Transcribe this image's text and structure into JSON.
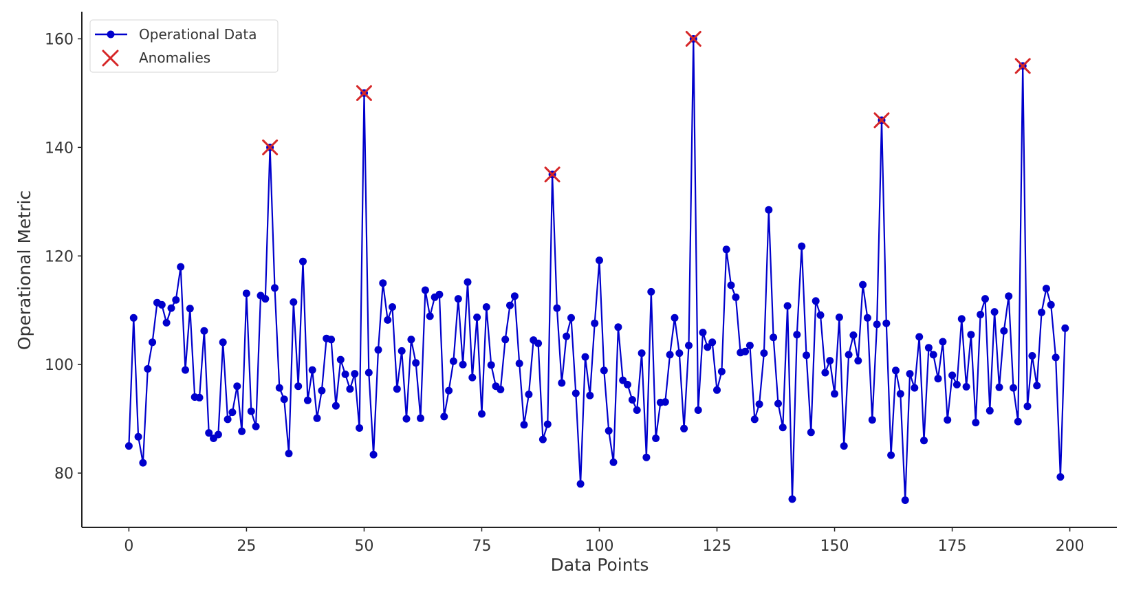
{
  "chart_data": {
    "type": "line",
    "title": "",
    "xlabel": "Data Points",
    "ylabel": "Operational Metric",
    "xlim": [
      -10,
      210
    ],
    "ylim": [
      70,
      165
    ],
    "x_ticks": [
      0,
      25,
      50,
      75,
      100,
      125,
      150,
      175,
      200
    ],
    "y_ticks": [
      80,
      100,
      120,
      140,
      160
    ],
    "grid": false,
    "legend_position": "top-left",
    "series": [
      {
        "name": "Operational Data",
        "color": "#0000cc",
        "marker": "circle",
        "x": [
          0,
          1,
          2,
          3,
          4,
          5,
          6,
          7,
          8,
          9,
          10,
          11,
          12,
          13,
          14,
          15,
          16,
          17,
          18,
          19,
          20,
          21,
          22,
          23,
          24,
          25,
          26,
          27,
          28,
          29,
          30,
          31,
          32,
          33,
          34,
          35,
          36,
          37,
          38,
          39,
          40,
          41,
          42,
          43,
          44,
          45,
          46,
          47,
          48,
          49,
          50,
          51,
          52,
          53,
          54,
          55,
          56,
          57,
          58,
          59,
          60,
          61,
          62,
          63,
          64,
          65,
          66,
          67,
          68,
          69,
          70,
          71,
          72,
          73,
          74,
          75,
          76,
          77,
          78,
          79,
          80,
          81,
          82,
          83,
          84,
          85,
          86,
          87,
          88,
          89,
          90,
          91,
          92,
          93,
          94,
          95,
          96,
          97,
          98,
          99,
          100,
          101,
          102,
          103,
          104,
          105,
          106,
          107,
          108,
          109,
          110,
          111,
          112,
          113,
          114,
          115,
          116,
          117,
          118,
          119,
          120,
          121,
          122,
          123,
          124,
          125,
          126,
          127,
          128,
          129,
          130,
          131,
          132,
          133,
          134,
          135,
          136,
          137,
          138,
          139,
          140,
          141,
          142,
          143,
          144,
          145,
          146,
          147,
          148,
          149,
          150,
          151,
          152,
          153,
          154,
          155,
          156,
          157,
          158,
          159,
          160,
          161,
          162,
          163,
          164,
          165,
          166,
          167,
          168,
          169,
          170,
          171,
          172,
          173,
          174,
          175,
          176,
          177,
          178,
          179,
          180,
          181,
          182,
          183,
          184,
          185,
          186,
          187,
          188,
          189,
          190,
          191,
          192,
          193,
          194,
          195,
          196,
          197,
          198,
          199
        ],
        "values": [
          85.0,
          108.6,
          86.7,
          81.9,
          99.2,
          104.1,
          111.4,
          111.0,
          107.7,
          110.4,
          111.9,
          118.0,
          99.0,
          110.3,
          94.0,
          93.9,
          106.2,
          87.4,
          86.4,
          87.1,
          104.1,
          89.9,
          91.2,
          96.0,
          87.7,
          113.1,
          91.4,
          88.6,
          112.7,
          112.1,
          140.0,
          114.1,
          95.7,
          93.6,
          83.6,
          111.5,
          96.0,
          119.0,
          93.4,
          99.0,
          90.1,
          95.2,
          104.8,
          104.6,
          92.4,
          100.9,
          98.2,
          95.5,
          98.3,
          88.3,
          150.0,
          98.5,
          83.4,
          102.7,
          115.0,
          108.2,
          110.6,
          95.5,
          102.5,
          90.0,
          104.6,
          100.3,
          90.1,
          113.7,
          108.9,
          112.4,
          112.9,
          90.4,
          95.2,
          100.6,
          112.1,
          100.0,
          115.2,
          97.6,
          108.7,
          90.9,
          110.6,
          99.9,
          96.0,
          95.4,
          104.6,
          110.9,
          112.6,
          100.2,
          88.9,
          94.5,
          104.5,
          103.9,
          86.2,
          89.0,
          135.0,
          110.4,
          96.6,
          105.2,
          108.6,
          94.7,
          78.0,
          101.4,
          94.3,
          107.6,
          119.2,
          98.9,
          87.8,
          82.0,
          106.9,
          97.1,
          96.3,
          93.5,
          91.6,
          102.1,
          82.9,
          113.4,
          86.4,
          93.0,
          93.1,
          101.8,
          108.6,
          102.1,
          88.2,
          103.5,
          160.0,
          91.6,
          105.9,
          103.2,
          104.1,
          95.3,
          98.7,
          121.2,
          114.6,
          112.4,
          102.2,
          102.4,
          103.5,
          89.9,
          92.7,
          102.1,
          128.5,
          105.0,
          92.8,
          88.4,
          110.8,
          75.2,
          105.5,
          121.8,
          101.7,
          87.5,
          111.7,
          109.1,
          98.5,
          100.7,
          94.6,
          108.7,
          85.0,
          101.8,
          105.4,
          100.7,
          114.7,
          108.6,
          89.8,
          107.4,
          145.0,
          107.6,
          83.3,
          98.9,
          94.6,
          75.0,
          98.3,
          95.7,
          105.1,
          86.0,
          103.1,
          101.8,
          97.4,
          104.2,
          89.8,
          98.0,
          96.3,
          108.4,
          95.9,
          105.5,
          89.3,
          109.2,
          112.1,
          91.5,
          109.7,
          95.8,
          106.2,
          112.6,
          95.7,
          89.5,
          155.0,
          92.3,
          101.6,
          96.1,
          109.6,
          114.0,
          111.0,
          101.3,
          79.3,
          106.7
        ]
      },
      {
        "name": "Anomalies",
        "color": "#d62728",
        "marker": "x",
        "x": [
          30,
          50,
          90,
          120,
          160,
          190
        ],
        "values": [
          140,
          150,
          135,
          160,
          145,
          155
        ]
      }
    ]
  }
}
